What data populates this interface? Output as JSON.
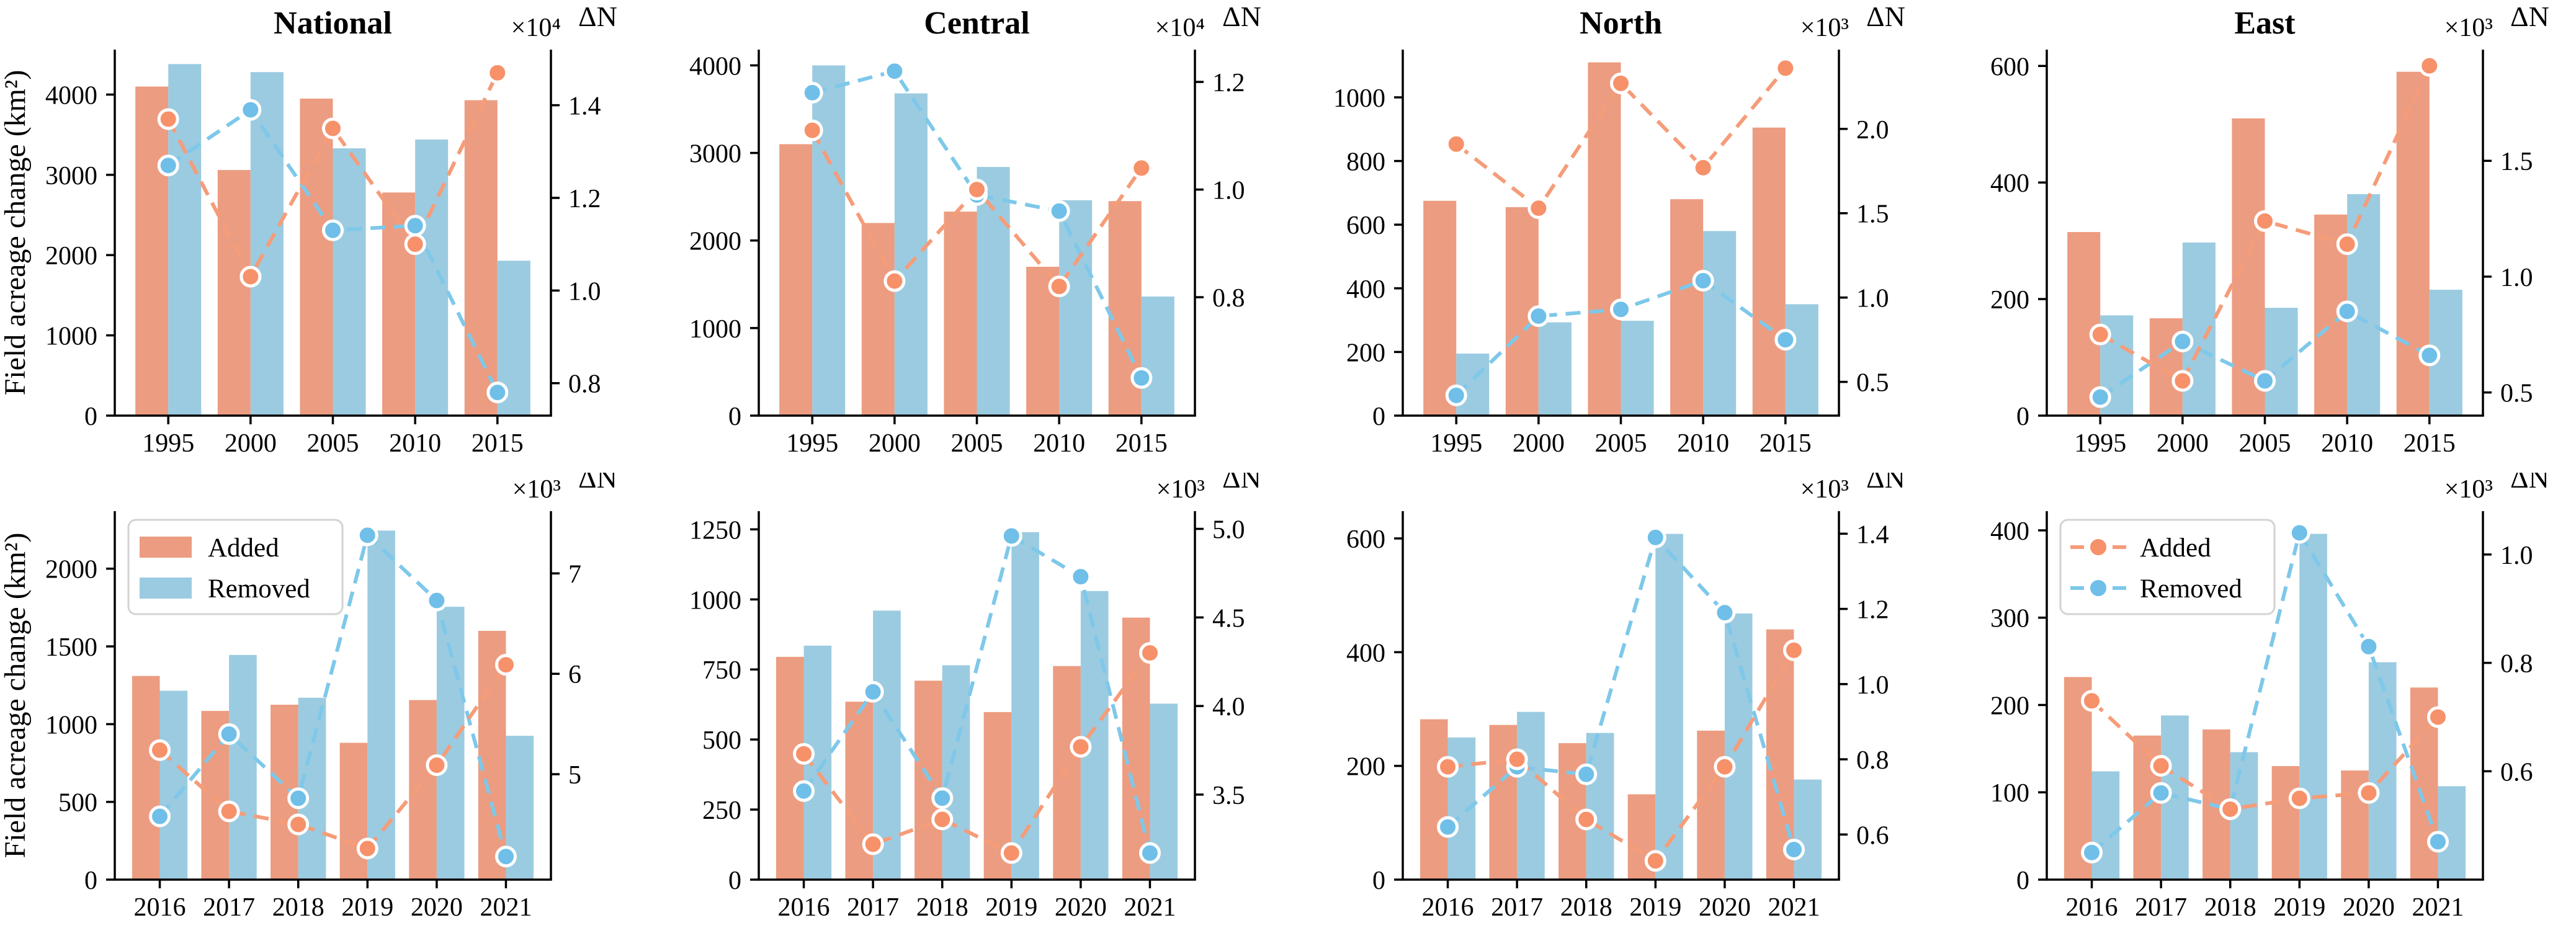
{
  "figure": {
    "ylabel": "Field acreage change (km²)",
    "background": "#FFFFFF",
    "colors": {
      "bar_added": "#EC9C80",
      "bar_removed": "#9BCBE0",
      "line_added": "#F59C79",
      "line_removed": "#7EC8EA",
      "marker_added": "#F6916A",
      "marker_removed": "#6FBFE8",
      "marker_edge": "#FFFFFF",
      "axis": "#000000",
      "legend_border": "#D3D3D3"
    }
  },
  "chart_data": [
    {
      "id": "national-top",
      "row": 0,
      "type": "bar+line",
      "title": "National",
      "show_ylabel": true,
      "legend": null,
      "categories": [
        1995,
        2000,
        2005,
        2010,
        2015
      ],
      "bars_added": [
        4100,
        3060,
        3950,
        2780,
        3930
      ],
      "bars_removed": [
        4380,
        4280,
        3330,
        3440,
        1930
      ],
      "dn_added": [
        1.37,
        1.03,
        1.35,
        1.1,
        1.47
      ],
      "dn_removed": [
        1.27,
        1.39,
        1.13,
        1.14,
        0.78
      ],
      "left_axis": {
        "ticks": [
          0,
          1000,
          2000,
          3000,
          4000
        ],
        "lim": [
          0,
          4560
        ]
      },
      "right_axis": {
        "tick_values": [
          0.8,
          1.0,
          1.2,
          1.4
        ],
        "tick_labels": [
          "0.8",
          "1.0",
          "1.2",
          "1.4"
        ],
        "lim": [
          0.73,
          1.52
        ],
        "multiplier": "×10⁴",
        "label": "ΔN"
      }
    },
    {
      "id": "central-top",
      "row": 0,
      "type": "bar+line",
      "title": "Central",
      "show_ylabel": false,
      "legend": null,
      "categories": [
        1995,
        2000,
        2005,
        2010,
        2015
      ],
      "bars_added": [
        3100,
        2200,
        2330,
        1700,
        2450
      ],
      "bars_removed": [
        4000,
        3680,
        2840,
        2460,
        1360
      ],
      "dn_added": [
        1.11,
        0.83,
        1.0,
        0.82,
        1.04
      ],
      "dn_removed": [
        1.18,
        1.22,
        0.99,
        0.96,
        0.65
      ],
      "left_axis": {
        "ticks": [
          0,
          1000,
          2000,
          3000,
          4000
        ],
        "lim": [
          0,
          4180
        ]
      },
      "right_axis": {
        "tick_values": [
          0.8,
          1.0,
          1.2
        ],
        "tick_labels": [
          "0.8",
          "1.0",
          "1.2"
        ],
        "lim": [
          0.58,
          1.26
        ],
        "multiplier": "×10⁴",
        "label": "ΔN"
      }
    },
    {
      "id": "north-top",
      "row": 0,
      "type": "bar+line",
      "title": "North",
      "show_ylabel": false,
      "legend": null,
      "categories": [
        1995,
        2000,
        2005,
        2010,
        2015
      ],
      "bars_added": [
        675,
        655,
        1110,
        680,
        905
      ],
      "bars_removed": [
        195,
        293,
        298,
        580,
        350
      ],
      "dn_added": [
        1.91,
        1.53,
        2.27,
        1.77,
        2.36
      ],
      "dn_removed": [
        0.42,
        0.89,
        0.93,
        1.1,
        0.75
      ],
      "left_axis": {
        "ticks": [
          0,
          200,
          400,
          600,
          800,
          1000
        ],
        "lim": [
          0,
          1150
        ]
      },
      "right_axis": {
        "tick_values": [
          0.5,
          1.0,
          1.5,
          2.0
        ],
        "tick_labels": [
          "0.5",
          "1.0",
          "1.5",
          "2.0"
        ],
        "lim": [
          0.3,
          2.47
        ],
        "multiplier": "×10³",
        "label": "ΔN"
      }
    },
    {
      "id": "east-top",
      "row": 0,
      "type": "bar+line",
      "title": "East",
      "show_ylabel": false,
      "legend": null,
      "categories": [
        1995,
        2000,
        2005,
        2010,
        2015
      ],
      "bars_added": [
        315,
        167,
        510,
        345,
        590
      ],
      "bars_removed": [
        172,
        297,
        185,
        380,
        216
      ],
      "dn_added": [
        0.75,
        0.55,
        1.24,
        1.14,
        1.91
      ],
      "dn_removed": [
        0.48,
        0.72,
        0.55,
        0.85,
        0.66
      ],
      "left_axis": {
        "ticks": [
          0,
          200,
          400,
          600
        ],
        "lim": [
          0,
          628
        ]
      },
      "right_axis": {
        "tick_values": [
          0.5,
          1.0,
          1.5
        ],
        "tick_labels": [
          "0.5",
          "1.0",
          "1.5"
        ],
        "lim": [
          0.4,
          1.98
        ],
        "multiplier": "×10³",
        "label": "ΔN"
      }
    },
    {
      "id": "national-bottom",
      "row": 1,
      "type": "bar+line",
      "title": "",
      "show_ylabel": true,
      "legend": {
        "style": "patch",
        "labels": [
          "Added",
          "Removed"
        ]
      },
      "categories": [
        2016,
        2017,
        2018,
        2019,
        2020,
        2021
      ],
      "bars_added": [
        1310,
        1085,
        1125,
        880,
        1155,
        1600
      ],
      "bars_removed": [
        1215,
        1445,
        1170,
        2245,
        1755,
        925
      ],
      "dn_added": [
        5.24,
        4.63,
        4.5,
        4.26,
        5.09,
        6.09
      ],
      "dn_removed": [
        4.58,
        5.4,
        4.76,
        7.38,
        6.73,
        4.18
      ],
      "left_axis": {
        "ticks": [
          0,
          500,
          1000,
          1500,
          2000
        ],
        "lim": [
          0,
          2370
        ]
      },
      "right_axis": {
        "tick_values": [
          5,
          6,
          7
        ],
        "tick_labels": [
          "5",
          "6",
          "7"
        ],
        "lim": [
          3.95,
          7.62
        ],
        "multiplier": "×10³",
        "label": "ΔN"
      }
    },
    {
      "id": "central-bottom",
      "row": 1,
      "type": "bar+line",
      "title": "",
      "show_ylabel": false,
      "legend": null,
      "categories": [
        2016,
        2017,
        2018,
        2019,
        2020,
        2021
      ],
      "bars_added": [
        795,
        635,
        710,
        598,
        762,
        935
      ],
      "bars_removed": [
        835,
        960,
        765,
        1240,
        1030,
        628
      ],
      "dn_added": [
        3.73,
        3.22,
        3.36,
        3.17,
        3.77,
        4.3
      ],
      "dn_removed": [
        3.52,
        4.08,
        3.48,
        4.96,
        4.73,
        3.17
      ],
      "left_axis": {
        "ticks": [
          0,
          250,
          500,
          750,
          1000,
          1250
        ],
        "lim": [
          0,
          1315
        ]
      },
      "right_axis": {
        "tick_values": [
          3.5,
          4.0,
          4.5,
          5.0
        ],
        "tick_labels": [
          "3.5",
          "4.0",
          "4.5",
          "5.0"
        ],
        "lim": [
          3.02,
          5.1
        ],
        "multiplier": "×10³",
        "label": "ΔN"
      }
    },
    {
      "id": "north-bottom",
      "row": 1,
      "type": "bar+line",
      "title": "",
      "show_ylabel": false,
      "legend": null,
      "categories": [
        2016,
        2017,
        2018,
        2019,
        2020,
        2021
      ],
      "bars_added": [
        282,
        272,
        240,
        150,
        262,
        440
      ],
      "bars_removed": [
        250,
        295,
        258,
        608,
        468,
        176
      ],
      "dn_added": [
        0.78,
        0.8,
        0.64,
        0.53,
        0.78,
        1.09
      ],
      "dn_removed": [
        0.62,
        0.78,
        0.76,
        1.39,
        1.19,
        0.56
      ],
      "left_axis": {
        "ticks": [
          0,
          200,
          400,
          600
        ],
        "lim": [
          0,
          648
        ]
      },
      "right_axis": {
        "tick_values": [
          0.6,
          0.8,
          1.0,
          1.2,
          1.4
        ],
        "tick_labels": [
          "0.6",
          "0.8",
          "1.0",
          "1.2",
          "1.4"
        ],
        "lim": [
          0.48,
          1.46
        ],
        "multiplier": "×10³",
        "label": "ΔN"
      }
    },
    {
      "id": "east-bottom",
      "row": 1,
      "type": "bar+line",
      "title": "",
      "show_ylabel": false,
      "legend": {
        "style": "line",
        "labels": [
          "Added",
          "Removed"
        ]
      },
      "categories": [
        2016,
        2017,
        2018,
        2019,
        2020,
        2021
      ],
      "bars_added": [
        232,
        165,
        172,
        130,
        125,
        220
      ],
      "bars_removed": [
        124,
        188,
        146,
        396,
        249,
        107
      ],
      "dn_added": [
        0.73,
        0.61,
        0.53,
        0.55,
        0.56,
        0.7
      ],
      "dn_removed": [
        0.45,
        0.56,
        0.53,
        1.04,
        0.83,
        0.47
      ],
      "left_axis": {
        "ticks": [
          0,
          100,
          200,
          300,
          400
        ],
        "lim": [
          0,
          422
        ]
      },
      "right_axis": {
        "tick_values": [
          0.6,
          0.8,
          1.0
        ],
        "tick_labels": [
          "0.6",
          "0.8",
          "1.0"
        ],
        "lim": [
          0.4,
          1.08
        ],
        "multiplier": "×10³",
        "label": "ΔN"
      }
    }
  ]
}
